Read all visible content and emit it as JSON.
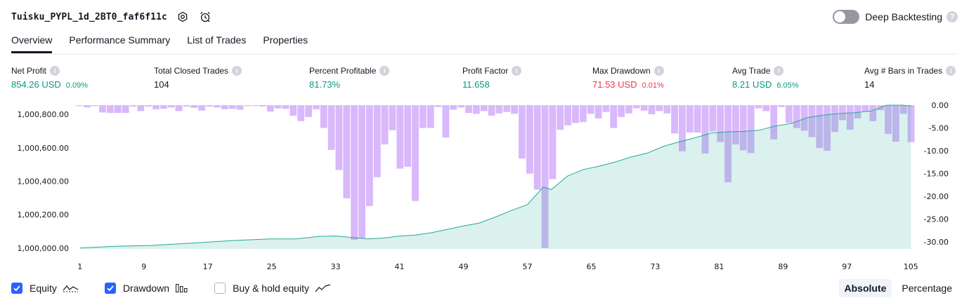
{
  "header": {
    "strategy_name": "Tuisku_PYPL_1d_2BT0_faf6f11c",
    "settings_icon": "settings-icon",
    "alert_icon": "alarm-clock-icon",
    "deep_backtesting_label": "Deep Backtesting",
    "deep_backtesting_enabled": false,
    "help_mark": "?"
  },
  "tabs": [
    {
      "label": "Overview",
      "active": true
    },
    {
      "label": "Performance Summary",
      "active": false
    },
    {
      "label": "List of Trades",
      "active": false
    },
    {
      "label": "Properties",
      "active": false
    }
  ],
  "stats": {
    "info_mark": "i",
    "net_profit": {
      "label": "Net Profit",
      "value": "854.26 USD",
      "pct": "0.09%"
    },
    "total_closed_trades": {
      "label": "Total Closed Trades",
      "value": "104"
    },
    "percent_profitable": {
      "label": "Percent Profitable",
      "value": "81.73%"
    },
    "profit_factor": {
      "label": "Profit Factor",
      "value": "11.658"
    },
    "max_drawdown": {
      "label": "Max Drawdown",
      "value": "71.53 USD",
      "pct": "0.01%"
    },
    "avg_trade": {
      "label": "Avg Trade",
      "value": "8.21 USD",
      "pct": "6.05%"
    },
    "avg_bars": {
      "label": "Avg # Bars in Trades",
      "value": "14"
    }
  },
  "colors": {
    "positive": "#089981",
    "negative": "#f23645",
    "drawdown_bar": "#d9b8fb",
    "equity_line": "#22ab94",
    "accent": "#2962ff"
  },
  "chart_data": {
    "type": "line",
    "x_ticks": [
      "1",
      "9",
      "17",
      "25",
      "33",
      "41",
      "49",
      "57",
      "65",
      "73",
      "81",
      "89",
      "97",
      "105"
    ],
    "x_range": [
      1,
      105
    ],
    "left_axis": {
      "ticks": [
        "1,000,800.00",
        "1,000,600.00",
        "1,000,400.00",
        "1,000,200.00",
        "1,000,000.00"
      ],
      "tick_values": [
        1000800,
        1000600,
        1000400,
        1000200,
        1000000
      ],
      "range": [
        999995,
        1000855
      ]
    },
    "right_axis": {
      "ticks": [
        "0.00",
        "-5.00",
        "-10.00",
        "-15.00",
        "-20.00",
        "-25.00",
        "-30.00"
      ],
      "tick_values": [
        0,
        -5,
        -10,
        -15,
        -20,
        -25,
        -30
      ],
      "range": [
        -31.5,
        0
      ]
    },
    "series": [
      {
        "name": "Equity",
        "kind": "area-line",
        "x": [
          1,
          5,
          10,
          15,
          20,
          25,
          28,
          31,
          33,
          35,
          37,
          39,
          41,
          43,
          45,
          47,
          49,
          51,
          53,
          55,
          57,
          59,
          60,
          62,
          64,
          66,
          68,
          70,
          72,
          74,
          76,
          78,
          80,
          82,
          84,
          86,
          88,
          90,
          92,
          94,
          96,
          98,
          100,
          102,
          104,
          105
        ],
        "values": [
          0,
          10,
          16,
          30,
          45,
          55,
          55,
          70,
          72,
          64,
          55,
          60,
          72,
          78,
          92,
          112,
          132,
          150,
          186,
          225,
          260,
          365,
          350,
          430,
          470,
          490,
          515,
          545,
          568,
          608,
          635,
          660,
          688,
          695,
          698,
          705,
          730,
          745,
          780,
          795,
          805,
          810,
          820,
          855,
          855,
          850
        ]
      },
      {
        "name": "Drawdown",
        "kind": "bar",
        "values": [
          -0.2,
          -0.5,
          -0.2,
          -1.6,
          -1.7,
          -1.7,
          -1.7,
          -0.3,
          -1.3,
          -0.3,
          -0.9,
          -0.8,
          -0.5,
          -1.3,
          -0.3,
          -0.6,
          -1.2,
          -0.3,
          -0.5,
          -0.9,
          -0.8,
          -1.0,
          -0.2,
          -0.2,
          -0.3,
          -1.4,
          -0.7,
          -0.8,
          -2.3,
          -3.5,
          -2.6,
          -0.9,
          -5.0,
          -9.8,
          -14.2,
          -20.4,
          -29.5,
          -29.2,
          -22.1,
          -15.8,
          -8.6,
          -5.5,
          -13.9,
          -13.5,
          -21.0,
          -5.0,
          -5.0,
          -0.4,
          -7.1,
          -1.0,
          -0.5,
          -1.7,
          -1.9,
          -1.3,
          -2.3,
          -1.8,
          -1.5,
          -1.9,
          -11.7,
          -15.0,
          -18.5,
          -31.3,
          -16.2,
          -5.4,
          -4.4,
          -3.9,
          -3.7,
          -1.9,
          -2.9,
          -1.5,
          -5.0,
          -2.6,
          -1.8,
          -0.7,
          -1.2,
          -2.0,
          -1.3,
          -1.8,
          -6.2,
          -10.1,
          -6.0,
          -6.0,
          -10.6,
          -5.8,
          -8.1,
          -16.9,
          -8.6,
          -9.9,
          -10.5,
          -0.7,
          -1.3,
          -7.5,
          -0.4,
          -3.9,
          -5.0,
          -5.6,
          -7.0,
          -9.4,
          -10.0,
          -5.9,
          -3.3,
          -5.4,
          -2.9,
          -1.4,
          -3.5,
          -1.1,
          -6.3,
          -8.0,
          -1.9,
          -8.1
        ]
      }
    ],
    "legend": [
      {
        "label": "Equity",
        "checked": true,
        "icon": "equity-line-icon"
      },
      {
        "label": "Drawdown",
        "checked": true,
        "icon": "drawdown-bars-icon"
      },
      {
        "label": "Buy & hold equity",
        "checked": false,
        "icon": "buy-hold-line-icon"
      }
    ],
    "grid": false
  },
  "view_modes": [
    {
      "label": "Absolute",
      "active": true
    },
    {
      "label": "Percentage",
      "active": false
    }
  ]
}
